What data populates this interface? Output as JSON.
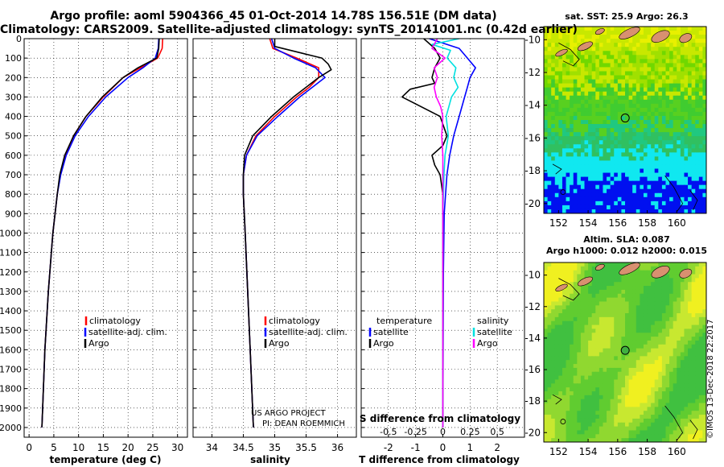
{
  "header": {
    "title_line1": "Argo profile: aoml 5904366_45 01-Oct-2014 14.78S 156.51E (DM data)",
    "title_line2": "Climatology: CARS2009. Satellite-adjusted climatology: synTS_20141001.nc (0.42d earlier)"
  },
  "map1": {
    "title": "sat. SST: 25.9 Argo: 26.3",
    "lat_ticks": [
      -10,
      -12,
      -14,
      -16,
      -18,
      -20
    ],
    "lon_ticks": [
      152,
      154,
      156,
      158,
      160
    ]
  },
  "map2": {
    "title_line1": "Altim. SLA: 0.087",
    "title_line2": "Argo h1000: 0.012 h2000: 0.015",
    "lat_ticks": [
      -10,
      -12,
      -14,
      -16,
      -18,
      -20
    ],
    "lon_ticks": [
      152,
      154,
      156,
      158,
      160
    ]
  },
  "footer": {
    "stamp": "©IMOS 13-Dec-2018 22:2017",
    "project_line1": "US ARGO PROJECT",
    "project_line2": "PI: DEAN ROEMMICH"
  },
  "colors": {
    "climatology": "#ff0000",
    "satellite": "#0000ff",
    "argo": "#000000",
    "sat_salinity": "#00e0e0",
    "argo_salinity": "#ff00ff"
  },
  "chart_data": [
    {
      "type": "line",
      "name": "temperature",
      "xlabel": "temperature (deg C)",
      "ylabel": "",
      "xlim": [
        -1,
        32
      ],
      "ylim": [
        2050,
        0
      ],
      "xticks": [
        0,
        5,
        10,
        15,
        20,
        25,
        30
      ],
      "yticks": [
        0,
        100,
        200,
        300,
        400,
        500,
        600,
        700,
        800,
        900,
        1000,
        1100,
        1200,
        1300,
        1400,
        1500,
        1600,
        1700,
        1800,
        1900,
        2000
      ],
      "legend": [
        "climatology",
        "satellite-adj. clim.",
        "Argo"
      ],
      "series": [
        {
          "name": "climatology",
          "depth": [
            0,
            50,
            100,
            150,
            200,
            300,
            400,
            500,
            600,
            700,
            800,
            1000,
            1300,
            1600,
            2000
          ],
          "values": [
            27,
            26.9,
            26,
            22.5,
            19,
            15,
            11.5,
            9,
            7.3,
            6.3,
            5.7,
            4.8,
            3.9,
            3.2,
            2.6
          ]
        },
        {
          "name": "satellite-adj. clim.",
          "depth": [
            0,
            50,
            100,
            150,
            200,
            300,
            400,
            500,
            600,
            700,
            800,
            1000,
            1300,
            1600,
            2000
          ],
          "values": [
            26.2,
            26.1,
            25.5,
            23,
            20,
            15.5,
            12,
            9.3,
            7.5,
            6.4,
            5.7,
            4.8,
            3.9,
            3.2,
            2.6
          ]
        },
        {
          "name": "Argo",
          "depth": [
            0,
            50,
            100,
            150,
            200,
            300,
            400,
            500,
            600,
            700,
            800,
            1000,
            1300,
            1600,
            2000
          ],
          "values": [
            26.3,
            26.2,
            25.8,
            22,
            19,
            14.8,
            11.5,
            9,
            7.2,
            6.2,
            5.7,
            4.8,
            3.9,
            3.2,
            2.6
          ]
        }
      ]
    },
    {
      "type": "line",
      "name": "salinity",
      "xlabel": "salinity",
      "ylabel": "",
      "xlim": [
        33.7,
        36.3
      ],
      "ylim": [
        2050,
        0
      ],
      "xticks": [
        34,
        34.5,
        35,
        35.5,
        36
      ],
      "legend": [
        "climatology",
        "satellite-adj. clim.",
        "Argo"
      ],
      "series": [
        {
          "name": "climatology",
          "depth": [
            0,
            50,
            100,
            150,
            200,
            250,
            300,
            400,
            500,
            600,
            700,
            800,
            1000,
            1300,
            1600,
            2000
          ],
          "values": [
            34.92,
            34.97,
            35.35,
            35.7,
            35.7,
            35.55,
            35.35,
            35.0,
            34.7,
            34.55,
            34.5,
            34.5,
            34.53,
            34.57,
            34.61,
            34.66
          ]
        },
        {
          "name": "satellite-adj. clim.",
          "depth": [
            0,
            50,
            100,
            150,
            200,
            250,
            300,
            400,
            500,
            600,
            700,
            800,
            1000,
            1300,
            1600,
            2000
          ],
          "values": [
            34.95,
            35.0,
            35.3,
            35.65,
            35.8,
            35.6,
            35.4,
            35.05,
            34.72,
            34.55,
            34.5,
            34.5,
            34.53,
            34.57,
            34.61,
            34.66
          ]
        },
        {
          "name": "Argo",
          "depth": [
            0,
            40,
            80,
            100,
            130,
            160,
            200,
            250,
            300,
            400,
            500,
            600,
            700,
            800,
            1000,
            1300,
            1600,
            2000
          ],
          "values": [
            35.0,
            35.0,
            35.5,
            35.75,
            35.85,
            35.9,
            35.7,
            35.5,
            35.3,
            34.95,
            34.65,
            34.52,
            34.5,
            34.5,
            34.53,
            34.57,
            34.61,
            34.66
          ]
        }
      ]
    },
    {
      "type": "line",
      "name": "difference",
      "xlabel": "T difference from climatology",
      "x2label": "S difference from climatology",
      "xlim": [
        -3,
        3
      ],
      "ylim": [
        2050,
        0
      ],
      "xticks": [
        -2,
        -1,
        0,
        1,
        2
      ],
      "xticks2": [
        -0.5,
        -0.25,
        0,
        0.25,
        0.5
      ],
      "legend": [
        "temperature",
        "satellite",
        "Argo",
        "salinity",
        "satellite",
        "Argo"
      ],
      "series": [
        {
          "name": "T satellite",
          "depth": [
            0,
            50,
            100,
            150,
            200,
            250,
            300,
            400,
            500,
            600,
            700,
            900,
            1200,
            2000
          ],
          "values": [
            -0.5,
            0.6,
            0.9,
            1.2,
            1.0,
            0.9,
            0.8,
            0.6,
            0.4,
            0.25,
            0.15,
            0.05,
            0.02,
            0.0
          ]
        },
        {
          "name": "T Argo",
          "depth": [
            0,
            50,
            100,
            150,
            200,
            230,
            260,
            300,
            400,
            500,
            550,
            600,
            650,
            700,
            800,
            900,
            1200,
            2000
          ],
          "values": [
            -0.7,
            -0.3,
            -0.1,
            -0.3,
            -0.4,
            -0.3,
            -1.2,
            -1.5,
            -0.1,
            0.15,
            0.0,
            -0.4,
            -0.3,
            -0.1,
            0.0,
            0.0,
            0.0,
            0.0
          ]
        },
        {
          "name": "S satellite",
          "depth": [
            0,
            30,
            60,
            100,
            150,
            200,
            250,
            300,
            400,
            500,
            600,
            700,
            900,
            1200,
            2000
          ],
          "values": [
            0.15,
            -0.1,
            0.07,
            0.04,
            0.12,
            0.1,
            0.14,
            0.08,
            0.03,
            0.05,
            0.02,
            0.01,
            0.0,
            0.0,
            0.0
          ]
        },
        {
          "name": "S Argo",
          "depth": [
            0,
            50,
            100,
            150,
            200,
            250,
            300,
            350,
            400,
            500,
            600,
            700,
            900,
            1200,
            1500,
            2000
          ],
          "values": [
            -0.05,
            -0.1,
            0.02,
            -0.08,
            -0.05,
            -0.08,
            -0.06,
            -0.02,
            0.0,
            -0.01,
            0.0,
            0.0,
            0.0,
            0.0,
            0.0,
            0.0
          ]
        }
      ]
    }
  ]
}
